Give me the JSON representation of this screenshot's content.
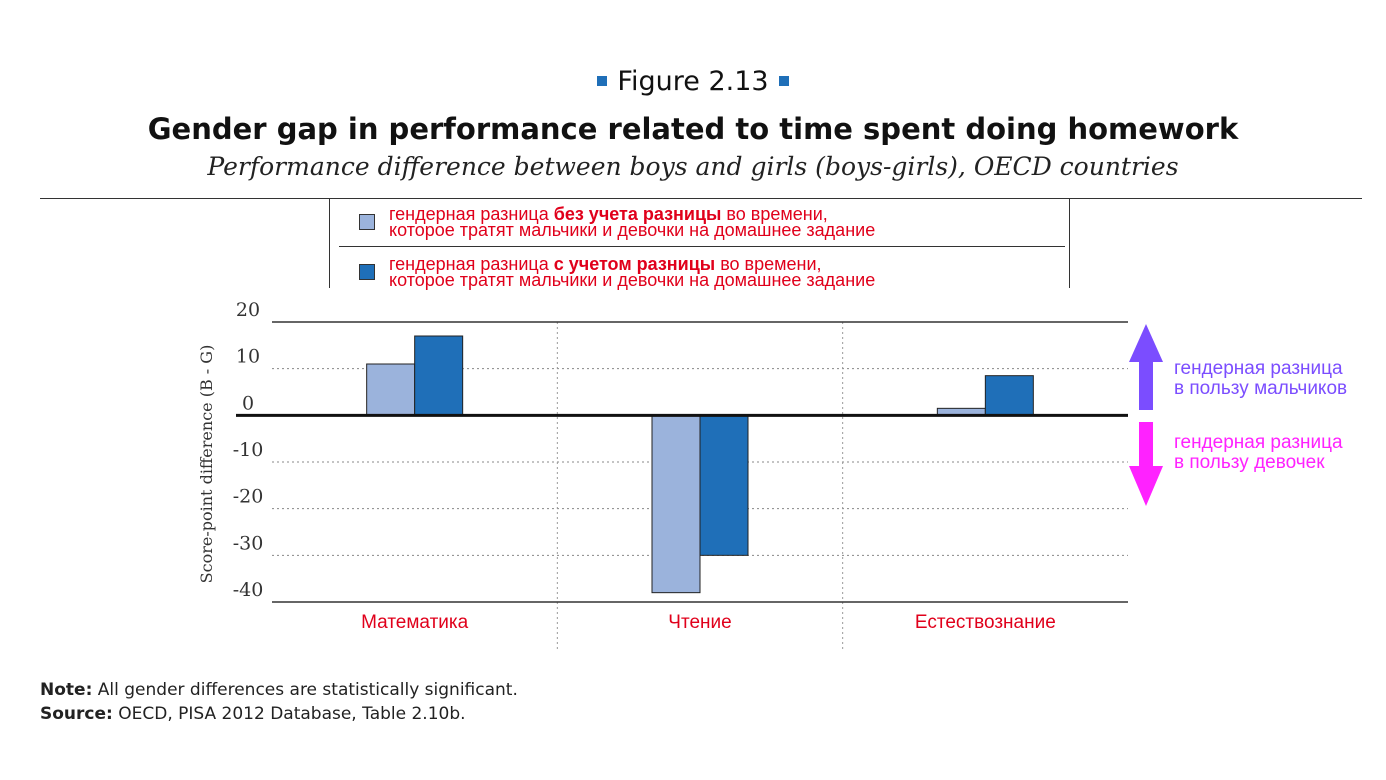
{
  "figure": {
    "label": "Figure 2.13",
    "title": "Gender gap in performance related to time spent doing homework",
    "subtitle": "Performance difference between boys and girls (boys-girls), OECD countries"
  },
  "legend": [
    {
      "pre": "гендерная разница ",
      "bold": "без учета разницы",
      "post": " во времени,",
      "line2": "которое тратят мальчики и девочки на домашнее задание",
      "color": "#9bb3dc"
    },
    {
      "pre": "гендерная разница ",
      "bold": "с учетом разницы",
      "post": " во времени,",
      "line2": "которое тратят мальчики и девочки на домашнее задание",
      "color": "#1f6fb8"
    }
  ],
  "annotations": {
    "boys_line1": "гендерная разница",
    "boys_line2": "в пользу мальчиков",
    "girls_line1": "гендерная разница",
    "girls_line2": "в пользу девочек",
    "boys_color": "#7b4dff",
    "girls_color": "#ff22ff"
  },
  "chart_data": {
    "type": "bar",
    "ylabel": "Score-point difference (B - G)",
    "ylim": [
      -40,
      20
    ],
    "yticks": [
      20,
      10,
      0,
      -10,
      -20,
      -30,
      -40
    ],
    "grid": true,
    "categories": [
      "Математика",
      "Чтение",
      "Естествознание"
    ],
    "series": [
      {
        "values": [
          11,
          -38,
          1.5
        ],
        "color": "#9bb3dc"
      },
      {
        "values": [
          17,
          -30,
          8.5
        ],
        "color": "#1f6fb8"
      }
    ]
  },
  "notes": {
    "note_label": "Note:",
    "note_text": " All gender differences are statistically significant.",
    "source_label": "Source:",
    "source_text": " OECD, PISA 2012 Database, Table 2.10b."
  }
}
